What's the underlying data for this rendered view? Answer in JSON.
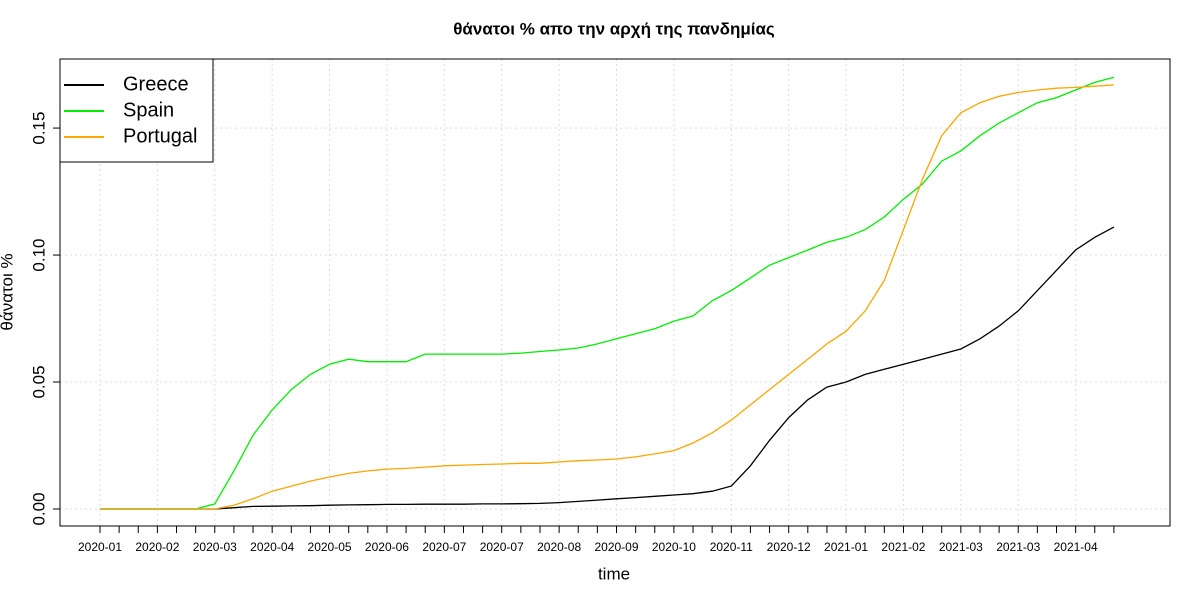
{
  "chart_data": {
    "type": "line",
    "title": "θάνατοι % απο την αρχή της πανδημίας",
    "x_label": "time",
    "y_label": "θάνατοι %",
    "categories": [
      "2020-01",
      null,
      null,
      "2020-02",
      null,
      null,
      "2020-03",
      null,
      null,
      "2020-04",
      null,
      null,
      "2020-05",
      null,
      null,
      "2020-06",
      null,
      null,
      "2020-07",
      null,
      null,
      "2020-07",
      null,
      null,
      "2020-08",
      null,
      null,
      "2020-09",
      null,
      null,
      "2020-10",
      null,
      null,
      "2020-11",
      null,
      null,
      "2020-12",
      null,
      null,
      "2021-01",
      null,
      null,
      "2021-02",
      null,
      null,
      "2021-03",
      null,
      null,
      "2021-03",
      null,
      null,
      "2021-04",
      null,
      null
    ],
    "series": [
      {
        "name": "Greece",
        "color": "#000000",
        "values": [
          0,
          0,
          0,
          0,
          0,
          0,
          0,
          0.0005,
          0.001,
          0.0011,
          0.0012,
          0.0013,
          0.0015,
          0.0016,
          0.0017,
          0.0018,
          0.0018,
          0.0019,
          0.0019,
          0.0019,
          0.002,
          0.002,
          0.0021,
          0.0022,
          0.0025,
          0.003,
          0.0035,
          0.004,
          0.0045,
          0.005,
          0.0055,
          0.006,
          0.007,
          0.009,
          0.017,
          0.027,
          0.036,
          0.043,
          0.048,
          0.05,
          0.053,
          0.055,
          0.057,
          0.059,
          0.061,
          0.063,
          0.067,
          0.072,
          0.078,
          0.086,
          0.094,
          0.102,
          0.107,
          0.111
        ]
      },
      {
        "name": "Spain",
        "color": "#00ee00",
        "values": [
          0,
          0,
          0,
          0,
          0,
          0,
          0.002,
          0.015,
          0.029,
          0.039,
          0.047,
          0.053,
          0.057,
          0.059,
          0.058,
          0.058,
          0.058,
          0.061,
          0.061,
          0.061,
          0.061,
          0.061,
          0.0614,
          0.062,
          0.0626,
          0.0634,
          0.065,
          0.067,
          0.069,
          0.071,
          0.074,
          0.076,
          0.082,
          0.086,
          0.091,
          0.096,
          0.099,
          0.102,
          0.105,
          0.107,
          0.11,
          0.115,
          0.122,
          0.128,
          0.137,
          0.141,
          0.147,
          0.152,
          0.156,
          0.16,
          0.162,
          0.165,
          0.168,
          0.17
        ]
      },
      {
        "name": "Portugal",
        "color": "#ffa500",
        "values": [
          0,
          0,
          0,
          0,
          0,
          0,
          0,
          0.0015,
          0.004,
          0.007,
          0.009,
          0.011,
          0.0126,
          0.014,
          0.015,
          0.0157,
          0.016,
          0.0165,
          0.017,
          0.0173,
          0.0175,
          0.0177,
          0.018,
          0.018,
          0.0185,
          0.019,
          0.0193,
          0.0197,
          0.0205,
          0.0217,
          0.023,
          0.026,
          0.03,
          0.035,
          0.041,
          0.047,
          0.053,
          0.059,
          0.065,
          0.07,
          0.078,
          0.09,
          0.11,
          0.13,
          0.147,
          0.156,
          0.16,
          0.1625,
          0.164,
          0.165,
          0.1657,
          0.166,
          0.1665,
          0.167
        ]
      }
    ],
    "ylim": [
      -0.0067,
      0.1772
    ],
    "yticks": [
      {
        "value": 0,
        "label": "0.00"
      },
      {
        "value": 0.05,
        "label": "0.05"
      },
      {
        "value": 0.1,
        "label": "0.10"
      },
      {
        "value": 0.15,
        "label": "0.15"
      }
    ],
    "grid": true,
    "legend": "top-left"
  }
}
